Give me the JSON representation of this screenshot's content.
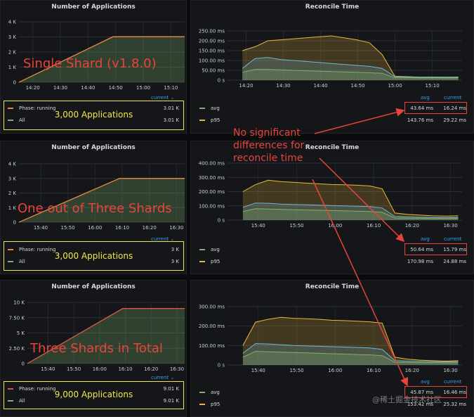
{
  "chart_data": [
    {
      "type": "area",
      "title": "Number of Applications",
      "x_ticks": [
        "14:20",
        "14:30",
        "14:40",
        "14:50",
        "15:00",
        "15:10"
      ],
      "y_ticks": [
        "0",
        "1 K",
        "2 K",
        "3 K",
        "4 K"
      ],
      "ylim": [
        0,
        4000
      ],
      "x": [
        "14:15",
        "14:49",
        "15:15"
      ],
      "series": [
        {
          "name": "Phase: running",
          "color": "#ef843c",
          "values": [
            0,
            3010,
            3010
          ],
          "current": "3.01 K"
        },
        {
          "name": "All",
          "color": "#7eb26d",
          "values": [
            0,
            3010,
            3010
          ],
          "current": "3.01 K"
        }
      ],
      "legend_header": "current ⌄",
      "annotation": "Single Shard (v1.8.0)",
      "boxed_label": "3,000 Applications"
    },
    {
      "type": "area",
      "title": "Reconcile Time",
      "x_ticks": [
        "14:20",
        "14:30",
        "14:40",
        "14:50",
        "15:00",
        "15:10"
      ],
      "y_ticks": [
        "0 s",
        "50.00 ms",
        "100.00 ms",
        "150.00 ms",
        "200.00 ms",
        "250.00 ms"
      ],
      "ylim": [
        0,
        250
      ],
      "series": [
        {
          "name": "avg",
          "color": "#7eb26d",
          "avg": "43.64 ms",
          "current": "16.24 ms"
        },
        {
          "name": "p95",
          "color": "#eab839",
          "avg": "143.76 ms",
          "current": "29.22 ms"
        }
      ],
      "legend_headers": [
        "avg",
        "current"
      ],
      "p95_profile": [
        150,
        170,
        200,
        205,
        210,
        215,
        220,
        225,
        215,
        205,
        190,
        130,
        20,
        18,
        15,
        16,
        15,
        16
      ],
      "avg_profile": [
        60,
        110,
        115,
        105,
        100,
        95,
        90,
        85,
        80,
        75,
        70,
        60,
        18,
        16,
        15,
        15,
        15,
        15
      ],
      "min_profile": [
        40,
        55,
        55,
        52,
        50,
        48,
        46,
        44,
        42,
        40,
        38,
        35,
        12,
        12,
        11,
        11,
        11,
        11
      ]
    },
    {
      "type": "area",
      "title": "Number of Applications",
      "x_ticks": [
        "15:40",
        "15:50",
        "16:00",
        "16:10",
        "16:20",
        "16:30"
      ],
      "y_ticks": [
        "0",
        "1 K",
        "2 K",
        "3 K",
        "4 K"
      ],
      "ylim": [
        0,
        4000
      ],
      "x": [
        "15:32",
        "16:09",
        "16:33"
      ],
      "series": [
        {
          "name": "Phase: running",
          "color": "#ef843c",
          "values": [
            0,
            3000,
            3000
          ],
          "current": "3 K"
        },
        {
          "name": "All",
          "color": "#7eb26d",
          "values": [
            0,
            3000,
            3000
          ],
          "current": "3 K"
        }
      ],
      "legend_header": "current ⌄",
      "annotation": "One out of Three Shards",
      "boxed_label": "3,000 Applications"
    },
    {
      "type": "area",
      "title": "Reconcile Time",
      "x_ticks": [
        "15:40",
        "15:50",
        "16:00",
        "16:10",
        "16:20",
        "16:30"
      ],
      "y_ticks": [
        "0 s",
        "100.00 ms",
        "200.00 ms",
        "300.00 ms",
        "400.00 ms"
      ],
      "ylim": [
        0,
        400
      ],
      "series": [
        {
          "name": "avg",
          "color": "#7eb26d",
          "avg": "50.64 ms",
          "current": "15.79 ms"
        },
        {
          "name": "p95",
          "color": "#eab839",
          "avg": "170.98 ms",
          "current": "24.88 ms"
        }
      ],
      "legend_headers": [
        "avg",
        "current"
      ],
      "p95_profile": [
        200,
        250,
        280,
        270,
        265,
        260,
        255,
        250,
        248,
        245,
        240,
        220,
        50,
        40,
        35,
        30,
        28,
        30
      ],
      "avg_profile": [
        90,
        120,
        118,
        112,
        110,
        108,
        105,
        102,
        100,
        98,
        95,
        85,
        25,
        22,
        20,
        18,
        17,
        18
      ],
      "min_profile": [
        60,
        80,
        78,
        75,
        73,
        71,
        69,
        67,
        65,
        63,
        60,
        55,
        15,
        14,
        13,
        12,
        12,
        12
      ]
    },
    {
      "type": "area",
      "title": "Number of Applications",
      "x_ticks": [
        "15:40",
        "15:50",
        "16:00",
        "16:10",
        "16:20",
        "16:30"
      ],
      "y_ticks": [
        "0",
        "2.50 K",
        "5 K",
        "7.50 K",
        "10 K"
      ],
      "ylim": [
        0,
        10000
      ],
      "x": [
        "15:32",
        "16:09",
        "16:33"
      ],
      "series": [
        {
          "name": "Phase: running",
          "color": "#e24d42",
          "values": [
            0,
            9010,
            9010
          ],
          "current": "9.01 K"
        },
        {
          "name": "All",
          "color": "#7eb26d",
          "values": [
            0,
            9010,
            9010
          ],
          "current": "9.01 K"
        }
      ],
      "legend_header": "current ⌄",
      "annotation": "Three Shards in Total",
      "boxed_label": "9,000 Applications"
    },
    {
      "type": "area",
      "title": "Reconcile Time",
      "x_ticks": [
        "15:40",
        "15:50",
        "16:00",
        "16:10",
        "16:20",
        "16:30"
      ],
      "y_ticks": [
        "0 s",
        "100.00 ms",
        "200.00 ms",
        "300.00 ms"
      ],
      "ylim": [
        0,
        300
      ],
      "series": [
        {
          "name": "avg",
          "color": "#7eb26d",
          "avg": "45.87 ms",
          "current": "16.46 ms"
        },
        {
          "name": "p95",
          "color": "#eab839",
          "avg": "153.42 ms",
          "current": "25.32 ms"
        }
      ],
      "legend_headers": [
        "avg",
        "current"
      ],
      "p95_profile": [
        100,
        220,
        235,
        245,
        240,
        238,
        235,
        230,
        228,
        225,
        222,
        215,
        40,
        30,
        25,
        22,
        20,
        22
      ],
      "avg_profile": [
        60,
        110,
        108,
        104,
        100,
        98,
        96,
        94,
        92,
        90,
        88,
        80,
        22,
        20,
        18,
        17,
        16,
        17
      ],
      "min_profile": [
        40,
        70,
        68,
        66,
        64,
        62,
        60,
        58,
        56,
        54,
        52,
        48,
        14,
        13,
        12,
        12,
        11,
        12
      ]
    }
  ],
  "annotation_text": [
    "No significant",
    "differences for",
    "reconcile time"
  ],
  "watermark": "@稀土掘金技术社区"
}
